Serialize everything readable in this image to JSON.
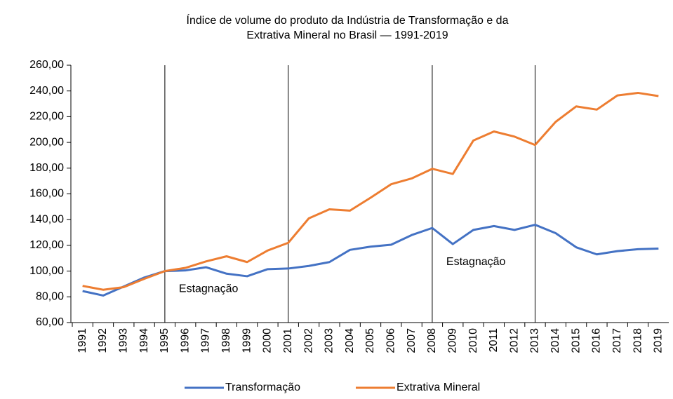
{
  "chart_data": {
    "type": "line",
    "title": [
      "Índice de volume do produto da Indústria de Transformação e da",
      "Extrativa Mineral no Brasil — 1991-2019"
    ],
    "categories": [
      "1991",
      "1992",
      "1993",
      "1994",
      "1995",
      "1996",
      "1997",
      "1998",
      "1999",
      "2000",
      "2001",
      "2002",
      "2003",
      "2004",
      "2005",
      "2006",
      "2007",
      "2008",
      "2009",
      "2010",
      "2011",
      "2012",
      "2013",
      "2014",
      "2015",
      "2016",
      "2017",
      "2018",
      "2019"
    ],
    "series": [
      {
        "name": "Transformação",
        "color": "#4472c4",
        "values": [
          84.5,
          81,
          88,
          95,
          100,
          100.5,
          103,
          98,
          96,
          101.5,
          102,
          104,
          107,
          116.5,
          119,
          120.5,
          128,
          133.5,
          121,
          132,
          135,
          132,
          136,
          129.5,
          118.5,
          113,
          115.5,
          117,
          117.5
        ]
      },
      {
        "name": "Extrativa Mineral",
        "color": "#ed7d31",
        "values": [
          88.5,
          85.5,
          87.5,
          94,
          100,
          102.5,
          107.5,
          111.5,
          107,
          116,
          122,
          141,
          148,
          147,
          157,
          167.5,
          172,
          179.5,
          175.5,
          201.5,
          208.5,
          204.5,
          198,
          216,
          228,
          225.5,
          236.5,
          238.5,
          236
        ]
      }
    ],
    "ylim": [
      60,
      260
    ],
    "yticks": [
      {
        "value": 60,
        "label": "60,00"
      },
      {
        "value": 80,
        "label": "80,00"
      },
      {
        "value": 100,
        "label": "100,00"
      },
      {
        "value": 120,
        "label": "120,00"
      },
      {
        "value": 140,
        "label": "140,00"
      },
      {
        "value": 160,
        "label": "160,00"
      },
      {
        "value": 180,
        "label": "180,00"
      },
      {
        "value": 200,
        "label": "200,00"
      },
      {
        "value": 220,
        "label": "220,00"
      },
      {
        "value": 240,
        "label": "240,00"
      },
      {
        "value": 260,
        "label": "260,00"
      }
    ],
    "vertical_lines": [
      "1995",
      "2001",
      "2008",
      "2013"
    ],
    "annotations": [
      {
        "text": "Estagnação",
        "x": "1995",
        "y": 86
      },
      {
        "text": "Estagnação",
        "x": "2008",
        "y": 107
      }
    ],
    "legend": "bottom"
  }
}
